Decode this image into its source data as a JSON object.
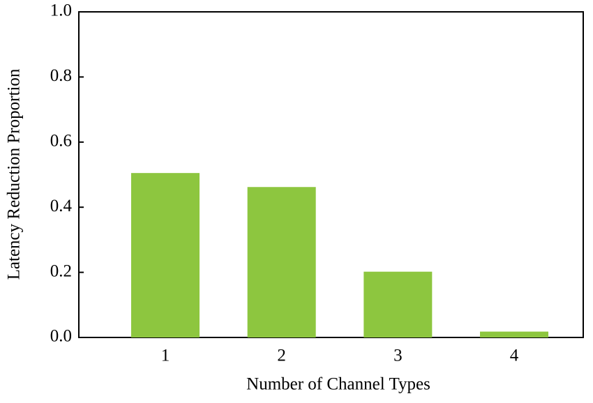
{
  "chart_data": {
    "type": "bar",
    "x_label": "Number of Channel Types",
    "y_label": "Latency Reduction Proportion",
    "categories": [
      "1",
      "2",
      "3",
      "4"
    ],
    "values": [
      0.505,
      0.462,
      0.202,
      0.018
    ],
    "color": "#8dc63f",
    "ylim": [
      0,
      1
    ],
    "yticks": [
      {
        "value": 0,
        "label": "0.0"
      },
      0.2,
      0.4,
      0.6,
      0.8,
      {
        "value": 1,
        "label": "1.0"
      }
    ],
    "grid": false
  }
}
